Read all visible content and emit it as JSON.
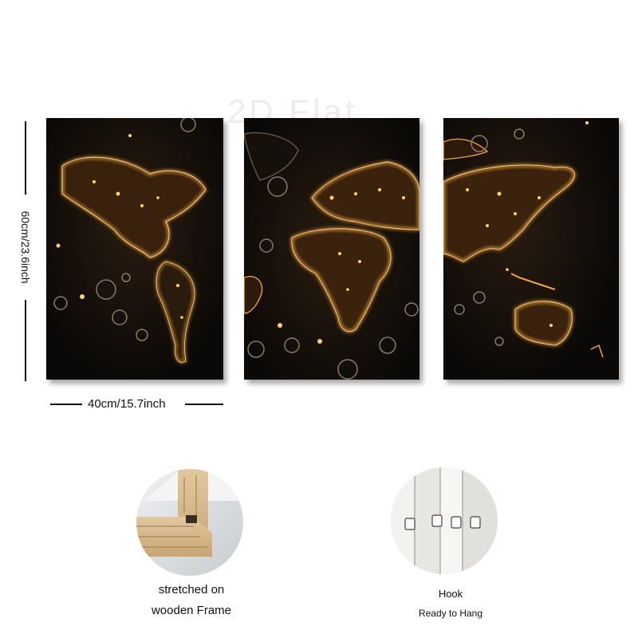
{
  "watermark": "2D Flat",
  "dimensions": {
    "height_label": "60cm/23.6inch",
    "width_label": "40cm/15.7inch"
  },
  "features": {
    "frame": {
      "line1": "stretched on",
      "line2": "wooden Frame"
    },
    "hook": {
      "line1": "Hook",
      "line2": "Ready to Hang"
    }
  },
  "colors": {
    "glow": "#f3a640",
    "background": "#0b0907"
  }
}
